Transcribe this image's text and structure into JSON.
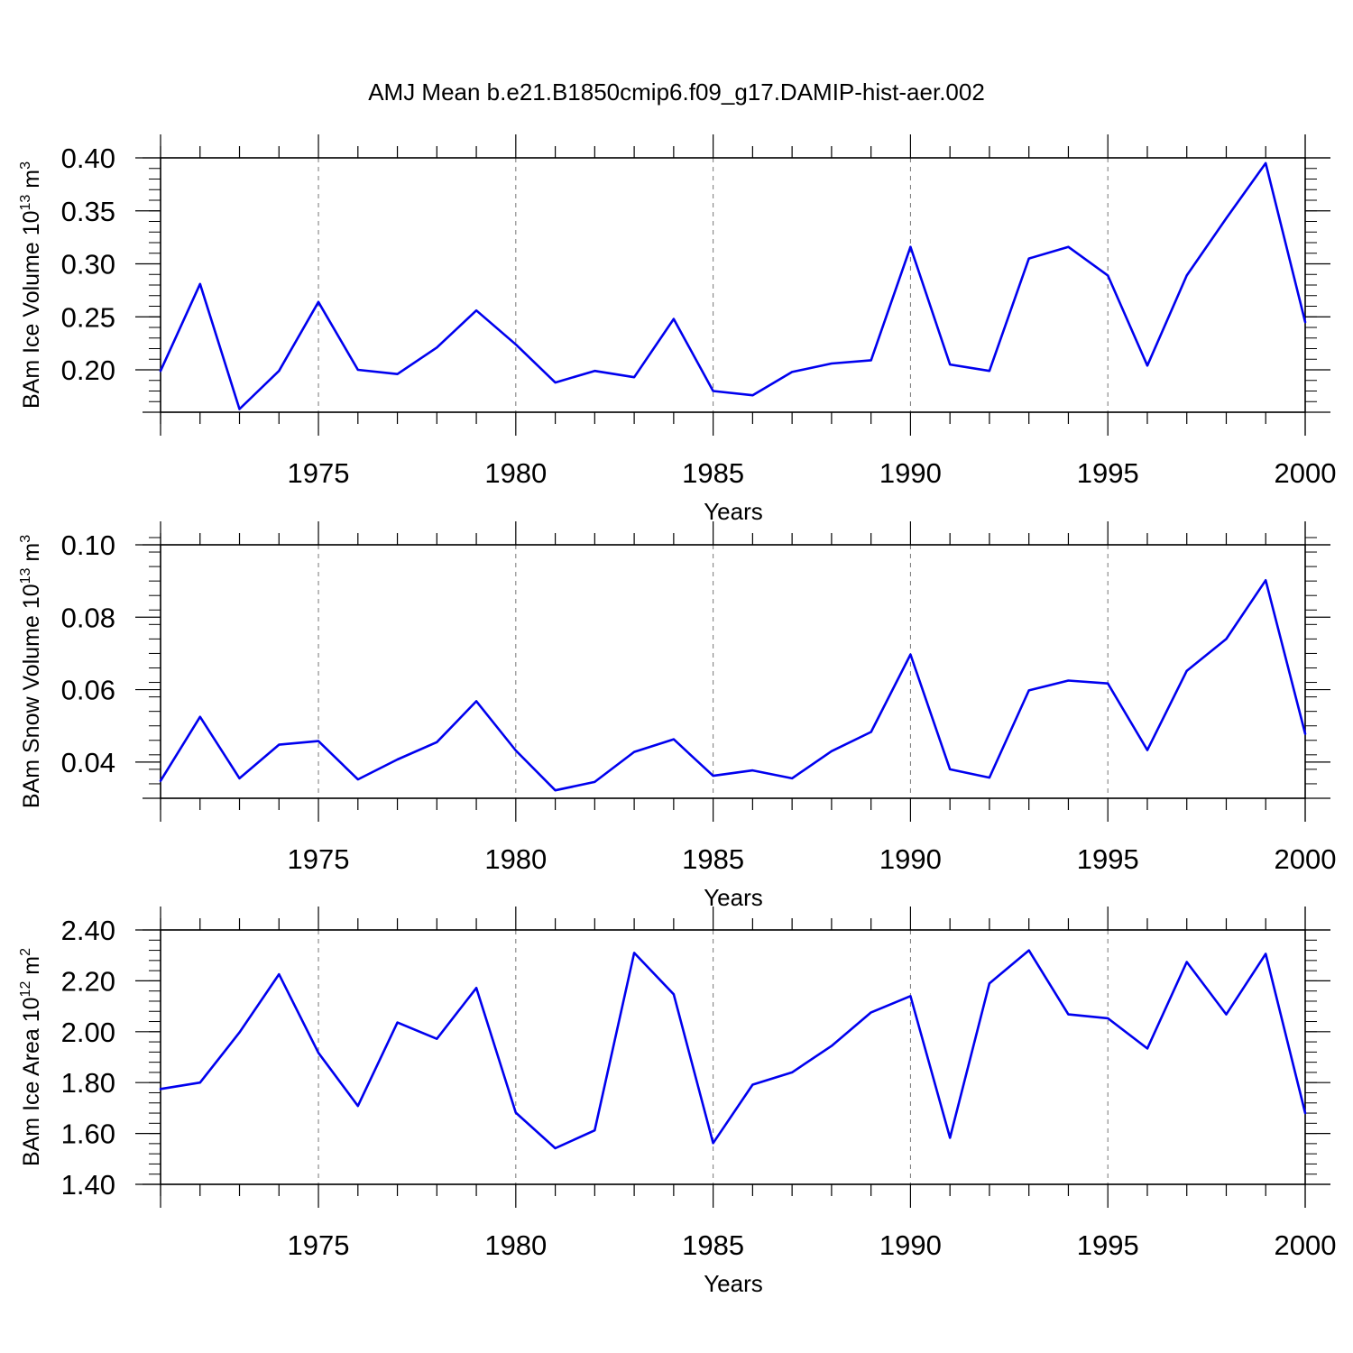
{
  "title": "AMJ Mean b.e21.B1850cmip6.f09_g17.DAMIP-hist-aer.002",
  "colors": {
    "line": "#0000ee",
    "axis": "#000000",
    "grid": "#777777"
  },
  "chart_data": [
    {
      "type": "line",
      "id": "ice-volume",
      "ylabel": {
        "main": "BAm Ice Volume 10",
        "exp": "13",
        "unit": " m",
        "unitExp": "3"
      },
      "xlabel": "Years",
      "xlim": [
        1971,
        2000
      ],
      "ylim": [
        0.16,
        0.4
      ],
      "yticks": [
        0.2,
        0.25,
        0.3,
        0.35,
        0.4
      ],
      "ytick_labels": [
        "0.20",
        "0.25",
        "0.30",
        "0.35",
        "0.40"
      ],
      "yminor_step": 0.01,
      "xticks": [
        1975,
        1980,
        1985,
        1990,
        1995,
        2000
      ],
      "xtick_labels": [
        "1975",
        "1980",
        "1985",
        "1990",
        "1995",
        "2000"
      ],
      "grid": "vertical dashed at major x ticks",
      "x": [
        1971,
        1972,
        1973,
        1974,
        1975,
        1976,
        1977,
        1978,
        1979,
        1980,
        1981,
        1982,
        1983,
        1984,
        1985,
        1986,
        1987,
        1988,
        1989,
        1990,
        1991,
        1992,
        1993,
        1994,
        1995,
        1996,
        1997,
        1998,
        1999,
        2000
      ],
      "values": [
        0.199,
        0.281,
        0.163,
        0.199,
        0.264,
        0.2,
        0.196,
        0.221,
        0.256,
        0.224,
        0.188,
        0.199,
        0.193,
        0.248,
        0.18,
        0.176,
        0.198,
        0.206,
        0.209,
        0.316,
        0.205,
        0.199,
        0.305,
        0.316,
        0.289,
        0.204,
        0.289,
        0.343,
        0.395,
        0.245
      ]
    },
    {
      "type": "line",
      "id": "snow-volume",
      "ylabel": {
        "main": "BAm Snow Volume 10",
        "exp": "13",
        "unit": " m",
        "unitExp": "3"
      },
      "xlabel": "Years",
      "xlim": [
        1971,
        2000
      ],
      "ylim": [
        0.03,
        0.1
      ],
      "yticks": [
        0.04,
        0.06,
        0.08,
        0.1
      ],
      "ytick_labels": [
        "0.04",
        "0.06",
        "0.08",
        "0.10"
      ],
      "yminor_step": 0.004,
      "xticks": [
        1975,
        1980,
        1985,
        1990,
        1995,
        2000
      ],
      "xtick_labels": [
        "1975",
        "1980",
        "1985",
        "1990",
        "1995",
        "2000"
      ],
      "grid": "vertical dashed at major x ticks",
      "x": [
        1971,
        1972,
        1973,
        1974,
        1975,
        1976,
        1977,
        1978,
        1979,
        1980,
        1981,
        1982,
        1983,
        1984,
        1985,
        1986,
        1987,
        1988,
        1989,
        1990,
        1991,
        1992,
        1993,
        1994,
        1995,
        1996,
        1997,
        1998,
        1999,
        2000
      ],
      "values": [
        0.0348,
        0.0525,
        0.0355,
        0.0448,
        0.0458,
        0.0352,
        0.0407,
        0.0455,
        0.0568,
        0.0432,
        0.0322,
        0.0345,
        0.0428,
        0.0463,
        0.0362,
        0.0377,
        0.0355,
        0.043,
        0.0483,
        0.0697,
        0.038,
        0.0357,
        0.0598,
        0.0625,
        0.0617,
        0.0433,
        0.0652,
        0.074,
        0.0902,
        0.0478
      ]
    },
    {
      "type": "line",
      "id": "ice-area",
      "ylabel": {
        "main": "BAm Ice Area 10",
        "exp": "12",
        "unit": " m",
        "unitExp": "2"
      },
      "xlabel": "Years",
      "xlim": [
        1971,
        2000
      ],
      "ylim": [
        1.4,
        2.4
      ],
      "yticks": [
        1.4,
        1.6,
        1.8,
        2.0,
        2.2,
        2.4
      ],
      "ytick_labels": [
        "1.40",
        "1.60",
        "1.80",
        "2.00",
        "2.20",
        "2.40"
      ],
      "yminor_step": 0.04,
      "xticks": [
        1975,
        1980,
        1985,
        1990,
        1995,
        2000
      ],
      "xtick_labels": [
        "1975",
        "1980",
        "1985",
        "1990",
        "1995",
        "2000"
      ],
      "grid": "vertical dashed at major x ticks",
      "x": [
        1971,
        1972,
        1973,
        1974,
        1975,
        1976,
        1977,
        1978,
        1979,
        1980,
        1981,
        1982,
        1983,
        1984,
        1985,
        1986,
        1987,
        1988,
        1989,
        1990,
        1991,
        1992,
        1993,
        1994,
        1995,
        1996,
        1997,
        1998,
        1999,
        2000
      ],
      "values": [
        1.775,
        1.8,
        1.997,
        2.226,
        1.917,
        1.708,
        2.036,
        1.972,
        2.172,
        1.682,
        1.542,
        1.612,
        2.31,
        2.147,
        1.562,
        1.792,
        1.84,
        1.944,
        2.076,
        2.14,
        1.583,
        2.19,
        2.32,
        2.068,
        2.053,
        1.934,
        2.274,
        2.068,
        2.306,
        1.68
      ]
    }
  ]
}
